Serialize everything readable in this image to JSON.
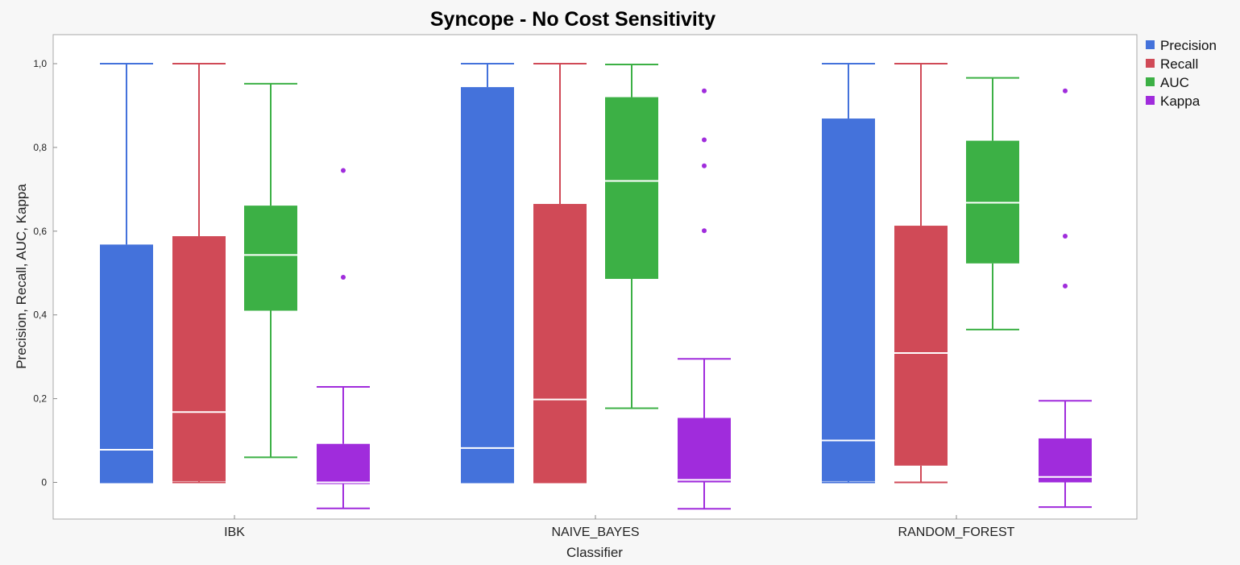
{
  "chart_data": {
    "type": "box",
    "title": "Syncope - No Cost Sensitivity",
    "xlabel": "Classifier",
    "ylabel": "Precision, Recall, AUC, Kappa",
    "ylim": [
      -0.085,
      1.07
    ],
    "yticks": [
      0,
      0.2,
      0.4,
      0.6,
      0.8,
      1.0
    ],
    "ytick_labels": [
      "0",
      "0,2",
      "0,4",
      "0,6",
      "0,8",
      "1,0"
    ],
    "categories": [
      "IBK",
      "NAIVE_BAYES",
      "RANDOM_FOREST"
    ],
    "legend_position": "right",
    "grid": false,
    "series": [
      {
        "name": "Precision",
        "color": "#4472db",
        "boxes": [
          {
            "min": 0.0,
            "q1": 0.0,
            "median": 0.078,
            "q3": 0.568,
            "max": 1.0,
            "outliers": []
          },
          {
            "min": 0.0,
            "q1": 0.0,
            "median": 0.082,
            "q3": 0.944,
            "max": 1.0,
            "outliers": []
          },
          {
            "min": 0.0,
            "q1": 0.003,
            "median": 0.1,
            "q3": 0.869,
            "max": 1.0,
            "outliers": []
          }
        ]
      },
      {
        "name": "Recall",
        "color": "#d04a57",
        "boxes": [
          {
            "min": 0.0,
            "q1": 0.003,
            "median": 0.168,
            "q3": 0.588,
            "max": 1.0,
            "outliers": []
          },
          {
            "min": 0.0,
            "q1": 0.0,
            "median": 0.198,
            "q3": 0.665,
            "max": 1.0,
            "outliers": []
          },
          {
            "min": 0.0,
            "q1": 0.04,
            "median": 0.309,
            "q3": 0.613,
            "max": 1.0,
            "outliers": []
          }
        ]
      },
      {
        "name": "AUC",
        "color": "#3cb045",
        "boxes": [
          {
            "min": 0.06,
            "q1": 0.41,
            "median": 0.543,
            "q3": 0.661,
            "max": 0.952,
            "outliers": []
          },
          {
            "min": 0.177,
            "q1": 0.486,
            "median": 0.72,
            "q3": 0.92,
            "max": 0.998,
            "outliers": []
          },
          {
            "min": 0.365,
            "q1": 0.523,
            "median": 0.668,
            "q3": 0.816,
            "max": 0.966,
            "outliers": []
          }
        ]
      },
      {
        "name": "Kappa",
        "color": "#a02cdc",
        "boxes": [
          {
            "min": -0.062,
            "q1": -0.004,
            "median": 0.0,
            "q3": 0.092,
            "max": 0.228,
            "outliers": [
              0.745,
              0.49
            ]
          },
          {
            "min": -0.063,
            "q1": 0.0,
            "median": 0.006,
            "q3": 0.154,
            "max": 0.295,
            "outliers": [
              0.935,
              0.818,
              0.756,
              0.601
            ]
          },
          {
            "min": -0.059,
            "q1": 0.0,
            "median": 0.013,
            "q3": 0.105,
            "max": 0.195,
            "outliers": [
              0.935,
              0.588,
              0.469
            ]
          }
        ]
      }
    ]
  }
}
